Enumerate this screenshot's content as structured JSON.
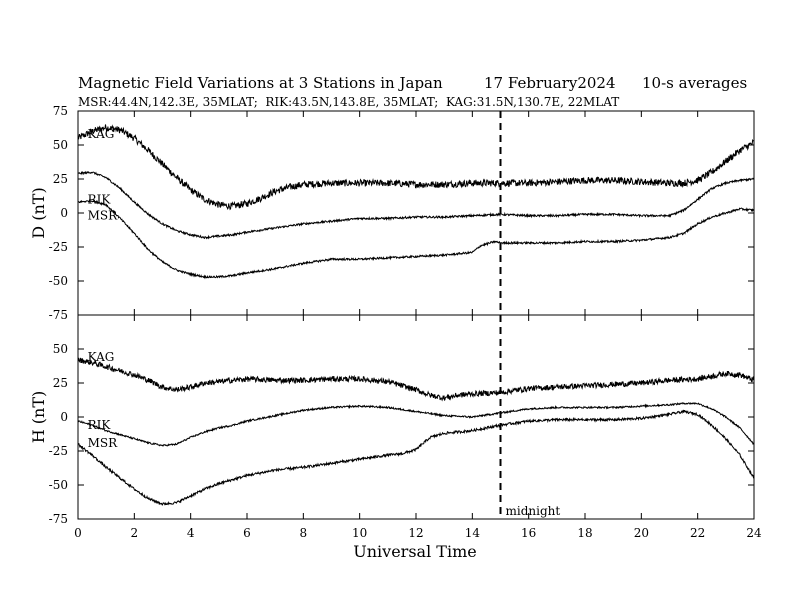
{
  "chart_data": {
    "type": "line",
    "title": "Magnetic Field Variations at 3 Stations in Japan",
    "date": "17 February2024",
    "averaging": "10-s averages",
    "subtitle": "MSR:44.4N,142.3E, 35MLAT;  RIK:43.5N,143.8E, 35MLAT;  KAG:31.5N,130.7E, 22MLAT",
    "xlabel": "Universal Time",
    "xlim": [
      0,
      24
    ],
    "xticks": [
      0,
      2,
      4,
      6,
      8,
      10,
      12,
      14,
      16,
      18,
      20,
      22,
      24
    ],
    "marker": {
      "x": 15,
      "label": "midnight"
    },
    "panels": [
      {
        "ylabel": "D (nT)",
        "ylim": [
          -75,
          75
        ],
        "yticks": [
          75,
          50,
          25,
          0,
          -25,
          -50,
          -75
        ],
        "series": [
          {
            "name": "KAG",
            "label_at": [
              0.2,
              58
            ],
            "noise": 2.5,
            "x": [
              0,
              0.5,
              1,
              1.5,
              2,
              2.5,
              3,
              3.5,
              4,
              4.5,
              5,
              5.5,
              6,
              6.5,
              7,
              7.5,
              8,
              9,
              10,
              11,
              12,
              13,
              14,
              15,
              16,
              17,
              18,
              19,
              20,
              21,
              21.5,
              22,
              22.5,
              23,
              23.5,
              24
            ],
            "y": [
              55,
              60,
              63,
              61,
              55,
              46,
              36,
              26,
              17,
              10,
              6,
              5,
              7,
              11,
              16,
              19,
              21,
              22,
              22,
              22,
              21,
              21,
              22,
              22,
              22,
              23,
              24,
              24,
              23,
              22,
              22,
              24,
              30,
              38,
              46,
              52
            ]
          },
          {
            "name": "RIK",
            "label_at": [
              0.2,
              10
            ],
            "noise": 0.7,
            "x": [
              0,
              0.5,
              1,
              1.5,
              2,
              2.5,
              3,
              3.5,
              4,
              4.5,
              5,
              5.5,
              6,
              7,
              8,
              9,
              10,
              11,
              12,
              13,
              14,
              15,
              16,
              17,
              18,
              19,
              20,
              21,
              21.5,
              22,
              22.5,
              23,
              23.5,
              24
            ],
            "y": [
              29,
              30,
              26,
              18,
              8,
              -1,
              -8,
              -13,
              -16,
              -18,
              -17,
              -16,
              -14,
              -11,
              -8,
              -6,
              -4,
              -4,
              -3,
              -3,
              -2,
              -1,
              -2,
              -2,
              -1,
              -1,
              -2,
              -2,
              2,
              10,
              18,
              22,
              24,
              25
            ]
          },
          {
            "name": "MSR",
            "label_at": [
              0.2,
              -2
            ],
            "noise": 0.7,
            "x": [
              0,
              0.5,
              1,
              1.5,
              2,
              2.5,
              3,
              3.5,
              4,
              4.5,
              5,
              5.5,
              6,
              7,
              8,
              9,
              10,
              11,
              12,
              13,
              14,
              14.3,
              14.8,
              15,
              16,
              17,
              18,
              19,
              20,
              21,
              21.5,
              22,
              22.5,
              23,
              23.5,
              24
            ],
            "y": [
              8,
              9,
              6,
              -4,
              -15,
              -27,
              -36,
              -42,
              -45,
              -47,
              -47,
              -46,
              -44,
              -41,
              -37,
              -34,
              -34,
              -33,
              -32,
              -31,
              -29,
              -24,
              -21,
              -22,
              -22,
              -22,
              -21,
              -21,
              -20,
              -18,
              -15,
              -8,
              -3,
              0,
              3,
              2
            ]
          }
        ]
      },
      {
        "ylabel": "H (nT)",
        "ylim": [
          -75,
          75
        ],
        "yticks": [
          75,
          50,
          25,
          0,
          -25,
          -50,
          -75
        ],
        "series": [
          {
            "name": "KAG",
            "label_at": [
              0.2,
              44
            ],
            "noise": 2.0,
            "x": [
              0,
              0.5,
              1,
              1.5,
              2,
              2.5,
              3,
              3.5,
              4,
              4.5,
              5,
              5.5,
              6,
              7,
              8,
              9,
              10,
              11,
              12,
              12.5,
              13,
              13.5,
              14,
              15,
              16,
              17,
              18,
              19,
              20,
              21,
              22,
              22.5,
              23,
              23.5,
              24
            ],
            "y": [
              42,
              40,
              37,
              34,
              31,
              27,
              22,
              20,
              22,
              25,
              26,
              27,
              28,
              27,
              27,
              28,
              28,
              26,
              20,
              16,
              14,
              16,
              17,
              18,
              21,
              22,
              23,
              24,
              25,
              27,
              28,
              30,
              32,
              31,
              27
            ]
          },
          {
            "name": "RIK",
            "label_at": [
              0.2,
              -6
            ],
            "noise": 0.6,
            "x": [
              0,
              0.5,
              1,
              1.5,
              2,
              2.5,
              3,
              3.5,
              4,
              4.5,
              5,
              5.5,
              6,
              7,
              8,
              9,
              10,
              11,
              12,
              13,
              14,
              15,
              16,
              17,
              18,
              19,
              20,
              21,
              21.5,
              22,
              22.5,
              23,
              23.5,
              24
            ],
            "y": [
              -3,
              -6,
              -10,
              -13,
              -16,
              -19,
              -21,
              -20,
              -15,
              -11,
              -8,
              -6,
              -3,
              1,
              5,
              7,
              8,
              7,
              4,
              1,
              0,
              3,
              6,
              7,
              7,
              7,
              8,
              9,
              10,
              10,
              6,
              0,
              -8,
              -20
            ]
          },
          {
            "name": "MSR",
            "label_at": [
              0.2,
              -19
            ],
            "noise": 0.9,
            "x": [
              0,
              0.5,
              1,
              1.5,
              2,
              2.5,
              3,
              3.5,
              4,
              4.5,
              5,
              5.5,
              6,
              7,
              8,
              9,
              10,
              11,
              11.5,
              12,
              12.5,
              13,
              14,
              15,
              16,
              17,
              18,
              19,
              20,
              21,
              21.5,
              22,
              22.5,
              23,
              23.5,
              24
            ],
            "y": [
              -20,
              -28,
              -37,
              -45,
              -53,
              -60,
              -64,
              -63,
              -58,
              -53,
              -49,
              -46,
              -43,
              -39,
              -37,
              -34,
              -31,
              -28,
              -27,
              -24,
              -15,
              -12,
              -10,
              -6,
              -3,
              -2,
              -2,
              -2,
              -1,
              2,
              4,
              2,
              -6,
              -16,
              -28,
              -45
            ]
          }
        ]
      }
    ]
  }
}
